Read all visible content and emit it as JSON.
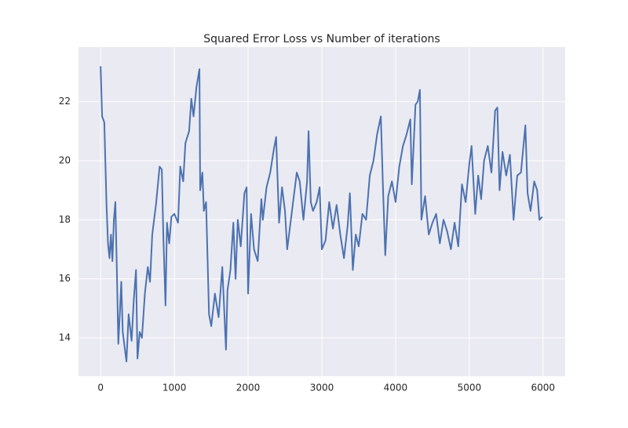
{
  "chart_data": {
    "type": "line",
    "title": "Squared Error Loss vs Number of iterations",
    "x": [
      0,
      20,
      50,
      80,
      100,
      120,
      140,
      160,
      180,
      200,
      220,
      240,
      260,
      280,
      300,
      320,
      350,
      380,
      420,
      450,
      480,
      500,
      530,
      560,
      600,
      640,
      670,
      700,
      750,
      800,
      830,
      850,
      880,
      900,
      930,
      960,
      1000,
      1050,
      1080,
      1120,
      1150,
      1200,
      1230,
      1260,
      1300,
      1340,
      1350,
      1380,
      1400,
      1430,
      1470,
      1500,
      1550,
      1600,
      1650,
      1700,
      1720,
      1760,
      1800,
      1830,
      1860,
      1900,
      1950,
      1980,
      2000,
      2040,
      2080,
      2130,
      2180,
      2200,
      2250,
      2300,
      2350,
      2380,
      2420,
      2460,
      2500,
      2530,
      2580,
      2620,
      2660,
      2700,
      2750,
      2800,
      2820,
      2850,
      2880,
      2930,
      2970,
      3000,
      3050,
      3100,
      3150,
      3200,
      3250,
      3300,
      3350,
      3380,
      3420,
      3460,
      3500,
      3550,
      3600,
      3650,
      3700,
      3750,
      3800,
      3830,
      3860,
      3900,
      3950,
      4000,
      4050,
      4100,
      4150,
      4200,
      4220,
      4270,
      4300,
      4330,
      4350,
      4400,
      4450,
      4500,
      4550,
      4600,
      4650,
      4700,
      4750,
      4800,
      4850,
      4900,
      4950,
      5000,
      5030,
      5080,
      5120,
      5160,
      5200,
      5250,
      5300,
      5350,
      5380,
      5410,
      5450,
      5500,
      5550,
      5600,
      5650,
      5700,
      5760,
      5790,
      5830,
      5880,
      5920,
      5950,
      5990
    ],
    "series": [
      {
        "name": "loss",
        "color": "#4c72b0",
        "values": [
          23.2,
          21.5,
          21.3,
          18.5,
          17.2,
          16.7,
          17.5,
          16.6,
          18.0,
          18.6,
          16.3,
          13.8,
          14.8,
          15.9,
          14.2,
          13.8,
          13.2,
          14.8,
          13.9,
          15.3,
          16.3,
          13.3,
          14.2,
          14.0,
          15.5,
          16.4,
          15.9,
          17.5,
          18.5,
          19.8,
          19.7,
          17.5,
          15.1,
          17.9,
          17.2,
          18.1,
          18.2,
          17.9,
          19.8,
          19.3,
          20.6,
          21.0,
          22.1,
          21.5,
          22.5,
          23.1,
          19.0,
          19.6,
          18.3,
          18.6,
          14.8,
          14.4,
          15.5,
          14.7,
          16.4,
          13.6,
          15.6,
          16.3,
          17.9,
          16.0,
          18.0,
          17.1,
          18.9,
          19.1,
          15.5,
          18.2,
          17.0,
          16.6,
          18.7,
          18.0,
          19.1,
          19.6,
          20.4,
          20.8,
          17.9,
          19.1,
          18.3,
          17.0,
          18.0,
          18.8,
          19.6,
          19.3,
          18.0,
          19.3,
          21.0,
          18.6,
          18.3,
          18.6,
          19.1,
          17.0,
          17.3,
          18.6,
          17.7,
          18.5,
          17.5,
          16.7,
          17.8,
          18.9,
          16.3,
          17.5,
          17.1,
          18.2,
          18.0,
          19.5,
          20.0,
          20.9,
          21.5,
          19.0,
          16.8,
          18.8,
          19.3,
          18.6,
          19.8,
          20.5,
          20.9,
          21.4,
          19.2,
          21.9,
          22.0,
          22.4,
          18.0,
          18.8,
          17.5,
          17.9,
          18.2,
          17.2,
          18.0,
          17.6,
          17.0,
          17.9,
          17.1,
          19.2,
          18.6,
          19.9,
          20.5,
          18.2,
          19.5,
          18.7,
          20.0,
          20.5,
          19.6,
          21.7,
          21.8,
          19.0,
          20.3,
          19.5,
          20.2,
          18.0,
          19.5,
          19.6,
          21.2,
          18.9,
          18.3,
          19.3,
          19.0,
          18.0,
          18.1
        ]
      }
    ],
    "xlim": [
      -300,
      6300
    ],
    "ylim": [
      12.7,
      23.85
    ],
    "xticks": [
      0,
      1000,
      2000,
      3000,
      4000,
      5000,
      6000
    ],
    "yticks": [
      14,
      16,
      18,
      20,
      22
    ],
    "grid": true
  }
}
